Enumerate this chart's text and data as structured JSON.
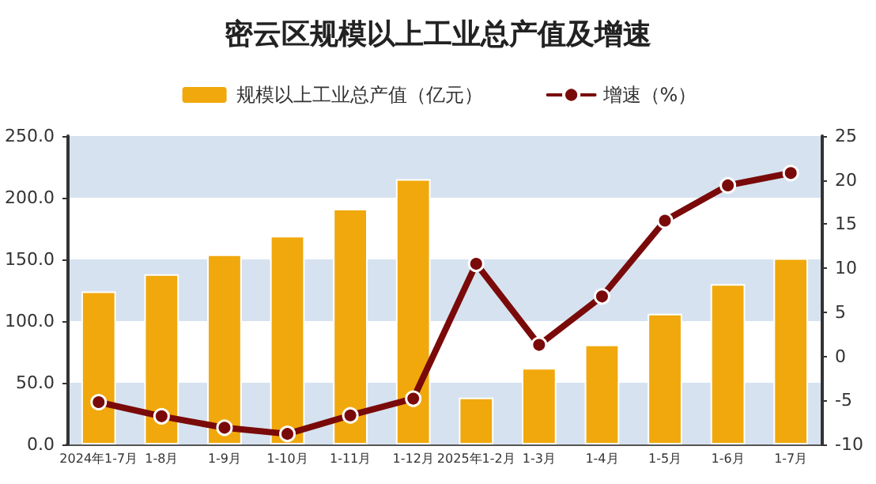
{
  "chart_data": {
    "type": "bar",
    "title": "密云区规模以上工业总产值及增速",
    "categories": [
      "2024年1-7月",
      "1-8月",
      "1-9月",
      "1-10月",
      "1-11月",
      "1-12月",
      "2025年1-2月",
      "1-3月",
      "1-4月",
      "1-5月",
      "1-6月",
      "1-7月"
    ],
    "series": [
      {
        "name": "规模以上工业总产值（亿元）",
        "color": "#f0a80c",
        "values": [
          124,
          138,
          154,
          169,
          191,
          215,
          38,
          62,
          81,
          106,
          130,
          151
        ]
      },
      {
        "name": "增速（%）",
        "type": "line",
        "axis": "y2",
        "color": "#7a0a0a",
        "values": [
          -5.2,
          -6.8,
          -8.1,
          -8.8,
          -6.7,
          -4.8,
          10.5,
          1.3,
          6.8,
          15.4,
          19.4,
          20.8
        ]
      }
    ],
    "ylim": [
      0,
      250
    ],
    "yticks": [
      {
        "value": 0,
        "label": "0.0"
      },
      {
        "value": 50,
        "label": "50.0"
      },
      {
        "value": 100,
        "label": "100.0"
      },
      {
        "value": 150,
        "label": "150.0"
      },
      {
        "value": 200,
        "label": "200.0"
      },
      {
        "value": 250,
        "label": "250.0"
      }
    ],
    "y2lim": [
      -10,
      25
    ],
    "y2ticks": [
      -10,
      -5,
      0,
      5,
      10,
      15,
      20,
      25
    ],
    "bands": [
      {
        "axis": "y",
        "from": 0,
        "to": 50,
        "color": "#d6e2ef"
      },
      {
        "axis": "y",
        "from": 100,
        "to": 150,
        "color": "#d6e2ef"
      },
      {
        "axis": "y",
        "from": 200,
        "to": 250,
        "color": "#d6e2ef"
      }
    ],
    "legend": "top",
    "marker": "circle",
    "line_style": "solid"
  }
}
